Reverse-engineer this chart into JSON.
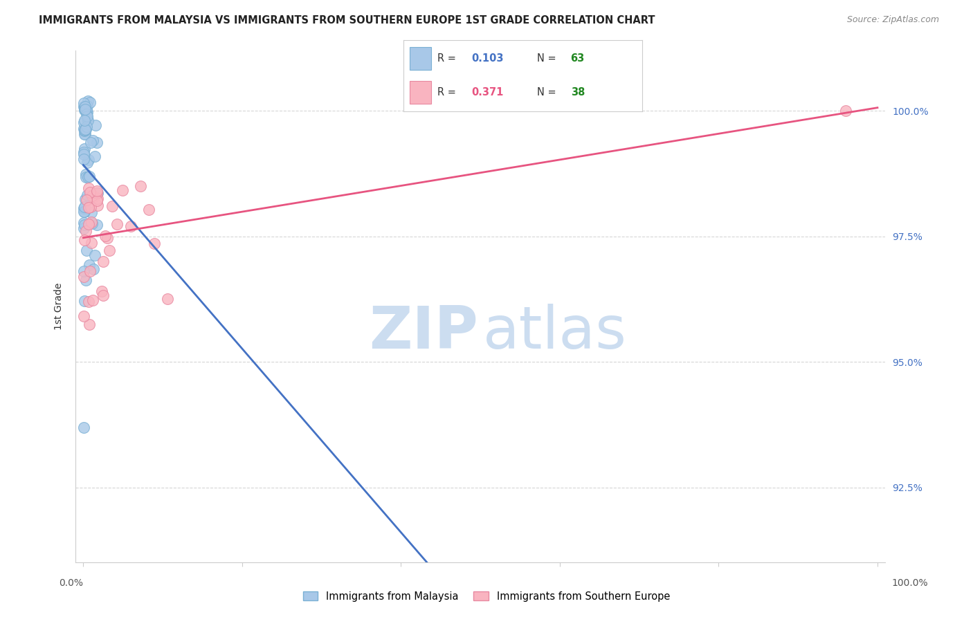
{
  "title": "IMMIGRANTS FROM MALAYSIA VS IMMIGRANTS FROM SOUTHERN EUROPE 1ST GRADE CORRELATION CHART",
  "source": "Source: ZipAtlas.com",
  "ylabel": "1st Grade",
  "y_tick_values": [
    92.5,
    95.0,
    97.5,
    100.0
  ],
  "y_tick_labels": [
    "92.5%",
    "95.0%",
    "97.5%",
    "100.0%"
  ],
  "xlim": [
    -1,
    101
  ],
  "ylim": [
    91.0,
    101.2
  ],
  "malaysia_R": "0.103",
  "malaysia_N": "63",
  "s_europe_R": "0.371",
  "s_europe_N": "38",
  "malaysia_color": "#a8c8e8",
  "malaysia_edge_color": "#7ab0d4",
  "malaysia_line_color": "#4472c4",
  "s_europe_color": "#f9b4c0",
  "s_europe_edge_color": "#e888a0",
  "s_europe_line_color": "#e75480",
  "malaysia_label": "Immigrants from Malaysia",
  "s_europe_label": "Immigrants from Southern Europe",
  "R_color": "#4472c4",
  "N_color": "#228822",
  "watermark_zip_color": "#ccddf0",
  "watermark_atlas_color": "#ccddf0",
  "title_fontsize": 10.5,
  "source_fontsize": 9,
  "tick_label_color": "#4472c4",
  "grid_color": "#cccccc"
}
